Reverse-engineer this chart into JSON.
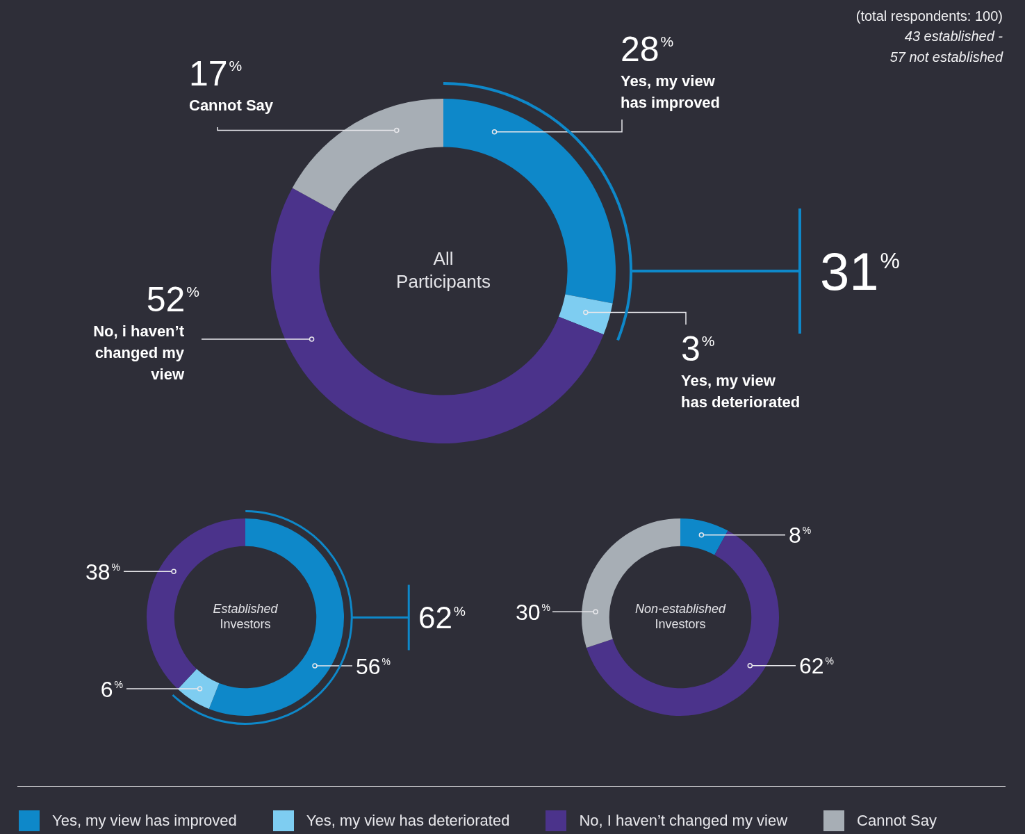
{
  "chart_data": [
    {
      "type": "donut",
      "title": "All Participants",
      "categories": [
        "Yes, my view has improved",
        "Yes, my view has deteriorated",
        "No, i haven’t changed my view",
        "Cannot Say"
      ],
      "values": [
        28,
        3,
        52,
        17
      ],
      "colors": [
        "#0e88c9",
        "#7ecdf1",
        "#4b338b",
        "#a7aeb5"
      ],
      "value_labels": [
        "28$^{%}$",
        "3$^{%}$",
        "52$^{%}$",
        "17$^{%}$"
      ],
      "annotations": [
        "31$^{%}$",
        "(total respondents: 100)",
        "43 established - 57 not established"
      ]
    },
    {
      "type": "donut",
      "title": "Established Investors",
      "categories": [
        null,
        null,
        null
      ],
      "values": [
        56,
        6,
        38
      ],
      "colors": [
        "#0e88c9",
        "#7ecdf1",
        "#4b338b"
      ],
      "value_labels": [
        "56$^{%}$",
        "6$^{%}$",
        "38$^{%}$"
      ],
      "annotations": [
        "62$^{%}$"
      ]
    },
    {
      "type": "donut",
      "title": "Non-established Investors",
      "categories": [
        "Yes, my view has improved",
        "Yes, my view has deteriorated",
        "No, I haven’t changed my view",
        "Cannot Say"
      ],
      "values": [
        8,
        null,
        62,
        30
      ],
      "colors": [
        "#0e88c9",
        "#7ecdf1",
        "#4b338b",
        "#a7aeb5"
      ],
      "value_labels": [
        "8$^{%}$",
        null,
        "62$^{%}$",
        "30$^{%}$"
      ],
      "legend": "bottom"
    }
  ]
}
